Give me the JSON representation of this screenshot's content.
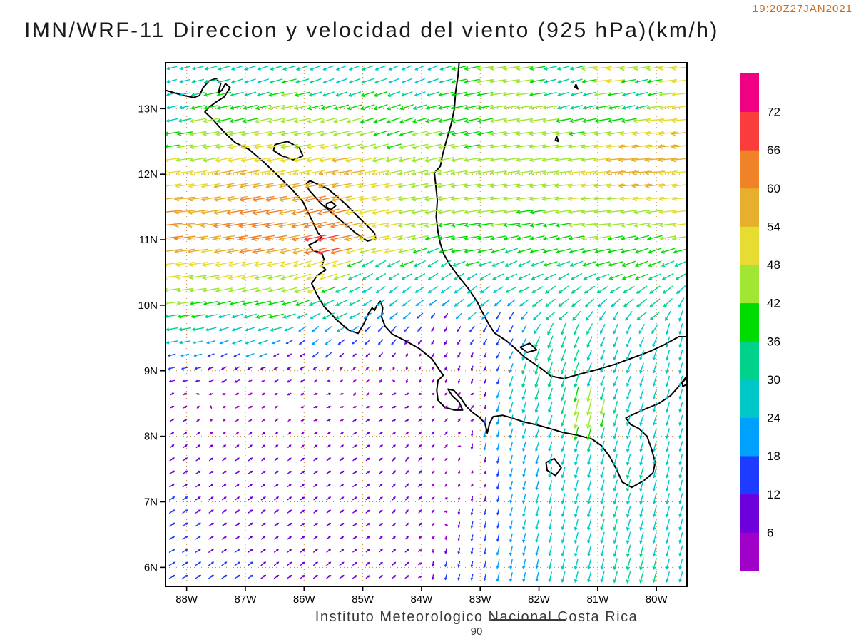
{
  "header": {
    "title": "IMN/WRF-11 Direccion y velocidad del viento (925 hPa)(km/h)",
    "timestamp": "19:20Z27JAN2021"
  },
  "footer": {
    "text": "Instituto Meteorologico Nacional Costa Rica",
    "frame_number": "90"
  },
  "colors": {
    "timestamp": "#c96a1b",
    "grid": "#c8883c",
    "coast": "#000000",
    "frame": "#000000",
    "tick_text": "#000000",
    "title_text": "#1a1a1a",
    "footer_text": "#3a3a3a"
  },
  "chart_data": {
    "type": "vector_field_map",
    "model": "IMN/WRF-11",
    "variable": "Direccion y velocidad del viento",
    "level": "925 hPa",
    "units": "km/h",
    "valid_time": "19:20Z27JAN2021",
    "legend_position": "right",
    "grid_style": "dotted",
    "x_tick_labels": [
      "88W",
      "87W",
      "86W",
      "85W",
      "84W",
      "83W",
      "82W",
      "81W",
      "80W"
    ],
    "y_tick_labels": [
      "13N",
      "12N",
      "11N",
      "10N",
      "9N",
      "8N",
      "7N",
      "6N"
    ],
    "lon_west_range": [
      88.36,
      79.48
    ],
    "lat_range": [
      5.71,
      13.7
    ],
    "colorbar": {
      "levels": [
        6,
        12,
        18,
        24,
        30,
        36,
        42,
        48,
        54,
        60,
        66,
        72
      ],
      "colors": [
        "#a000c8",
        "#6e00dc",
        "#1e3cff",
        "#00a0ff",
        "#00c8c8",
        "#00d28c",
        "#00dc00",
        "#a0e632",
        "#e6dc32",
        "#e6af2d",
        "#f08228",
        "#fa3c3c",
        "#f00082"
      ]
    },
    "wind_samples": [
      [
        88.3,
        13.6,
        -24,
        -6
      ],
      [
        86.9,
        13.5,
        -28,
        -9
      ],
      [
        85.5,
        13.6,
        -27,
        -10
      ],
      [
        84.2,
        13.6,
        -24,
        -10
      ],
      [
        82.5,
        13.62,
        -44,
        -6
      ],
      [
        80.8,
        13.62,
        -50,
        -5
      ],
      [
        79.6,
        13.6,
        -50,
        -5
      ],
      [
        81.5,
        13.3,
        -29,
        -8
      ],
      [
        80.3,
        13.15,
        -32,
        -8
      ],
      [
        88.3,
        13.0,
        -27,
        -6
      ],
      [
        87.4,
        13.0,
        -37,
        -8
      ],
      [
        86.3,
        12.9,
        -44,
        -9
      ],
      [
        84.6,
        12.9,
        -36,
        -12
      ],
      [
        83.3,
        12.9,
        -40,
        -8
      ],
      [
        82.0,
        12.85,
        -44,
        -6
      ],
      [
        80.0,
        12.8,
        -52,
        -5
      ],
      [
        88.3,
        12.5,
        -40,
        -6
      ],
      [
        87.6,
        12.6,
        -45,
        -8
      ],
      [
        85.2,
        12.55,
        -42,
        -11
      ],
      [
        79.6,
        12.5,
        -55,
        -5
      ],
      [
        88.3,
        12.15,
        -48,
        -6
      ],
      [
        86.8,
        12.2,
        -52,
        -9
      ],
      [
        85.3,
        12.1,
        -55,
        -8
      ],
      [
        83.9,
        12.1,
        -45,
        -10
      ],
      [
        82.4,
        12.1,
        -42,
        -6
      ],
      [
        80.3,
        12.1,
        -57,
        -5
      ],
      [
        87.0,
        11.8,
        -57,
        -10
      ],
      [
        85.0,
        11.75,
        -50,
        -10
      ],
      [
        83.0,
        11.8,
        -43,
        -6
      ],
      [
        81.3,
        11.8,
        -48,
        -5
      ],
      [
        88.3,
        11.45,
        -60,
        -6
      ],
      [
        86.8,
        11.5,
        -62,
        -10
      ],
      [
        85.6,
        11.35,
        -60,
        -13
      ],
      [
        84.1,
        11.4,
        -47,
        -8
      ],
      [
        82.6,
        11.45,
        -42,
        -5
      ],
      [
        80.9,
        11.4,
        -46,
        -4
      ],
      [
        79.6,
        11.5,
        -48,
        -5
      ],
      [
        88.3,
        11.0,
        -61,
        -7
      ],
      [
        86.9,
        11.05,
        -64,
        -10
      ],
      [
        85.6,
        11.02,
        -66,
        -14
      ],
      [
        84.6,
        10.95,
        -50,
        -9
      ],
      [
        83.3,
        10.9,
        -41,
        -6
      ],
      [
        82.0,
        10.85,
        -38,
        -8
      ],
      [
        80.6,
        10.9,
        -40,
        -8
      ],
      [
        88.3,
        10.65,
        -52,
        -7
      ],
      [
        87.0,
        10.55,
        -48,
        -10
      ],
      [
        85.8,
        10.45,
        -48,
        -15
      ],
      [
        84.7,
        10.5,
        -26,
        -16
      ],
      [
        83.6,
        10.5,
        -25,
        -17
      ],
      [
        82.2,
        10.55,
        -30,
        -14
      ],
      [
        80.3,
        10.6,
        -34,
        -13
      ],
      [
        88.2,
        10.1,
        -43,
        -6
      ],
      [
        86.7,
        10.05,
        -41,
        -9
      ],
      [
        85.5,
        9.95,
        -30,
        -14
      ],
      [
        84.5,
        10.05,
        -20,
        -16
      ],
      [
        83.2,
        10.15,
        -23,
        -18
      ],
      [
        81.7,
        10.05,
        -25,
        -19
      ],
      [
        80.2,
        10.0,
        -26,
        -20
      ],
      [
        88.3,
        9.6,
        -30,
        -5
      ],
      [
        87.0,
        9.55,
        -24,
        -8
      ],
      [
        85.7,
        9.5,
        -14,
        -12
      ],
      [
        84.6,
        9.55,
        -10,
        -11
      ],
      [
        83.6,
        9.6,
        -5,
        -9
      ],
      [
        82.6,
        9.55,
        -7,
        -14
      ],
      [
        81.6,
        9.45,
        -12,
        -32
      ],
      [
        80.5,
        9.55,
        -9,
        -24
      ],
      [
        79.6,
        9.55,
        -7,
        -27
      ],
      [
        88.3,
        9.05,
        -15,
        -4
      ],
      [
        87.2,
        9.0,
        -10,
        -5
      ],
      [
        86.2,
        9.0,
        -7,
        -4
      ],
      [
        85.1,
        9.0,
        -4,
        -3
      ],
      [
        84.2,
        9.0,
        -1,
        -2
      ],
      [
        83.1,
        9.0,
        -3,
        -8
      ],
      [
        82.0,
        8.95,
        -10,
        -33
      ],
      [
        80.8,
        9.0,
        -9,
        -24
      ],
      [
        79.7,
        9.0,
        -7,
        -26
      ],
      [
        88.3,
        8.55,
        6,
        3
      ],
      [
        87.0,
        8.5,
        5,
        3
      ],
      [
        85.6,
        8.5,
        6,
        2
      ],
      [
        84.4,
        8.5,
        6,
        3
      ],
      [
        83.3,
        8.45,
        3,
        4
      ],
      [
        82.35,
        8.35,
        -8,
        -28
      ],
      [
        81.15,
        8.35,
        -10,
        -45
      ],
      [
        80.2,
        8.45,
        -8,
        -25
      ],
      [
        79.6,
        8.5,
        -7,
        -25
      ],
      [
        88.3,
        8.0,
        7,
        5
      ],
      [
        86.6,
        8.0,
        5,
        4
      ],
      [
        85.0,
        8.0,
        6,
        4
      ],
      [
        83.7,
        8.05,
        4,
        5
      ],
      [
        82.8,
        7.95,
        -4,
        -18
      ],
      [
        81.8,
        8.0,
        -8,
        -24
      ],
      [
        80.8,
        8.0,
        -8,
        -28
      ],
      [
        79.8,
        8.0,
        -7,
        -25
      ],
      [
        88.3,
        7.45,
        9,
        6
      ],
      [
        87.0,
        7.4,
        7,
        5
      ],
      [
        85.5,
        7.4,
        7,
        5
      ],
      [
        84.2,
        7.4,
        5,
        6
      ],
      [
        83.2,
        7.4,
        1,
        3
      ],
      [
        82.4,
        7.4,
        -5,
        -20
      ],
      [
        81.4,
        7.4,
        -7,
        -27
      ],
      [
        80.4,
        7.4,
        -8,
        -29
      ],
      [
        79.6,
        7.4,
        -6,
        -27
      ],
      [
        88.3,
        6.8,
        11,
        7
      ],
      [
        86.8,
        6.8,
        8,
        6
      ],
      [
        85.3,
        6.8,
        7,
        5
      ],
      [
        84.0,
        6.8,
        4,
        5
      ],
      [
        83.0,
        6.8,
        -3,
        -13
      ],
      [
        82.0,
        6.8,
        -6,
        -24
      ],
      [
        80.9,
        6.8,
        -8,
        -29
      ],
      [
        79.7,
        6.8,
        -7,
        -27
      ],
      [
        88.3,
        6.0,
        12,
        7
      ],
      [
        87.1,
        6.0,
        10,
        7
      ],
      [
        85.7,
        6.0,
        8,
        6
      ],
      [
        84.4,
        6.05,
        6,
        5
      ],
      [
        83.4,
        6.0,
        -3,
        -12
      ],
      [
        82.4,
        6.0,
        -5,
        -22
      ],
      [
        81.3,
        6.0,
        -7,
        -27
      ],
      [
        80.3,
        6.0,
        -8,
        -30
      ],
      [
        79.6,
        6.0,
        -7,
        -26
      ]
    ],
    "map_outline": [
      [
        [
          88.36,
          13.28
        ],
        [
          88.05,
          13.2
        ],
        [
          87.88,
          13.17
        ],
        [
          87.78,
          13.2
        ],
        [
          87.72,
          13.32
        ],
        [
          87.62,
          13.42
        ],
        [
          87.5,
          13.46
        ],
        [
          87.42,
          13.38
        ],
        [
          87.46,
          13.24
        ],
        [
          87.4,
          13.28
        ],
        [
          87.34,
          13.38
        ],
        [
          87.26,
          13.32
        ],
        [
          87.36,
          13.18
        ],
        [
          87.5,
          13.1
        ],
        [
          87.62,
          13.02
        ],
        [
          87.69,
          12.95
        ],
        [
          87.56,
          12.84
        ],
        [
          87.35,
          12.63
        ],
        [
          87.17,
          12.48
        ],
        [
          86.94,
          12.38
        ],
        [
          86.68,
          12.18
        ],
        [
          86.45,
          11.98
        ],
        [
          86.22,
          11.78
        ],
        [
          86.02,
          11.58
        ],
        [
          85.88,
          11.32
        ],
        [
          85.76,
          11.1
        ],
        [
          85.7,
          11.04
        ],
        [
          85.8,
          10.97
        ],
        [
          85.92,
          10.92
        ],
        [
          85.84,
          10.83
        ],
        [
          85.7,
          10.8
        ],
        [
          85.66,
          10.7
        ],
        [
          85.7,
          10.6
        ],
        [
          85.63,
          10.54
        ],
        [
          85.78,
          10.45
        ],
        [
          85.87,
          10.33
        ],
        [
          85.78,
          10.16
        ],
        [
          85.66,
          9.98
        ],
        [
          85.45,
          9.78
        ],
        [
          85.24,
          9.62
        ],
        [
          85.08,
          9.57
        ],
        [
          84.98,
          9.72
        ],
        [
          84.9,
          9.88
        ],
        [
          84.84,
          9.96
        ],
        [
          84.8,
          9.92
        ],
        [
          84.76,
          10.0
        ],
        [
          84.7,
          10.06
        ],
        [
          84.66,
          9.96
        ],
        [
          84.68,
          9.82
        ],
        [
          84.62,
          9.68
        ],
        [
          84.5,
          9.56
        ],
        [
          84.28,
          9.46
        ],
        [
          84.04,
          9.34
        ],
        [
          83.82,
          9.18
        ],
        [
          83.7,
          9.02
        ],
        [
          83.63,
          8.93
        ],
        [
          83.72,
          8.85
        ],
        [
          83.74,
          8.7
        ],
        [
          83.72,
          8.55
        ],
        [
          83.6,
          8.44
        ],
        [
          83.44,
          8.4
        ],
        [
          83.3,
          8.4
        ],
        [
          83.36,
          8.52
        ],
        [
          83.48,
          8.62
        ],
        [
          83.55,
          8.72
        ],
        [
          83.45,
          8.7
        ],
        [
          83.33,
          8.58
        ],
        [
          83.24,
          8.46
        ],
        [
          83.14,
          8.37
        ],
        [
          83.0,
          8.28
        ],
        [
          82.92,
          8.2
        ],
        [
          82.88,
          8.05
        ],
        [
          82.84,
          8.2
        ],
        [
          82.78,
          8.3
        ],
        [
          82.62,
          8.32
        ],
        [
          82.46,
          8.28
        ],
        [
          82.26,
          8.22
        ],
        [
          82.06,
          8.18
        ],
        [
          81.82,
          8.12
        ],
        [
          81.6,
          8.06
        ],
        [
          81.36,
          8.02
        ],
        [
          81.1,
          7.96
        ],
        [
          80.94,
          7.86
        ],
        [
          80.8,
          7.7
        ],
        [
          80.68,
          7.5
        ],
        [
          80.58,
          7.3
        ],
        [
          80.42,
          7.22
        ],
        [
          80.22,
          7.32
        ],
        [
          80.06,
          7.44
        ],
        [
          80.02,
          7.6
        ],
        [
          80.08,
          7.8
        ],
        [
          80.16,
          8.0
        ],
        [
          80.3,
          8.12
        ],
        [
          80.44,
          8.18
        ],
        [
          80.52,
          8.28
        ],
        [
          80.38,
          8.34
        ],
        [
          80.18,
          8.42
        ],
        [
          79.96,
          8.5
        ],
        [
          79.76,
          8.62
        ],
        [
          79.6,
          8.78
        ],
        [
          79.5,
          8.9
        ]
      ],
      [
        [
          79.48,
          9.52
        ],
        [
          79.62,
          9.52
        ],
        [
          79.86,
          9.4
        ],
        [
          80.1,
          9.3
        ],
        [
          80.4,
          9.2
        ],
        [
          80.7,
          9.1
        ],
        [
          81.0,
          9.02
        ],
        [
          81.3,
          8.95
        ],
        [
          81.58,
          8.88
        ],
        [
          81.8,
          8.92
        ],
        [
          81.94,
          9.02
        ],
        [
          82.1,
          9.12
        ],
        [
          82.26,
          9.22
        ],
        [
          82.4,
          9.34
        ],
        [
          82.56,
          9.46
        ],
        [
          82.76,
          9.58
        ],
        [
          82.86,
          9.72
        ],
        [
          82.98,
          9.92
        ],
        [
          83.05,
          10.05
        ],
        [
          83.2,
          10.25
        ],
        [
          83.38,
          10.45
        ],
        [
          83.52,
          10.62
        ],
        [
          83.62,
          10.78
        ],
        [
          83.68,
          10.94
        ],
        [
          83.72,
          11.12
        ],
        [
          83.75,
          11.35
        ],
        [
          83.73,
          11.6
        ],
        [
          83.76,
          11.85
        ],
        [
          83.78,
          12.02
        ],
        [
          83.68,
          12.12
        ],
        [
          83.64,
          12.3
        ],
        [
          83.58,
          12.5
        ],
        [
          83.5,
          12.75
        ],
        [
          83.44,
          13.0
        ],
        [
          83.42,
          13.25
        ],
        [
          83.38,
          13.5
        ],
        [
          83.36,
          13.7
        ]
      ],
      [
        [
          85.9,
          11.9
        ],
        [
          85.6,
          11.78
        ],
        [
          85.3,
          11.55
        ],
        [
          85.0,
          11.28
        ],
        [
          84.8,
          11.1
        ],
        [
          84.78,
          11.02
        ],
        [
          84.92,
          10.98
        ],
        [
          85.12,
          11.1
        ],
        [
          85.42,
          11.33
        ],
        [
          85.72,
          11.56
        ],
        [
          85.92,
          11.76
        ],
        [
          85.96,
          11.86
        ],
        [
          85.9,
          11.9
        ]
      ],
      [
        [
          85.62,
          11.55
        ],
        [
          85.53,
          11.58
        ],
        [
          85.46,
          11.52
        ],
        [
          85.54,
          11.46
        ],
        [
          85.62,
          11.5
        ],
        [
          85.62,
          11.55
        ]
      ],
      [
        [
          86.5,
          12.45
        ],
        [
          86.28,
          12.5
        ],
        [
          86.08,
          12.4
        ],
        [
          86.02,
          12.28
        ],
        [
          86.18,
          12.22
        ],
        [
          86.38,
          12.28
        ],
        [
          86.52,
          12.36
        ],
        [
          86.5,
          12.45
        ]
      ],
      [
        [
          81.88,
          7.6
        ],
        [
          81.74,
          7.66
        ],
        [
          81.62,
          7.52
        ],
        [
          81.72,
          7.4
        ],
        [
          81.86,
          7.48
        ],
        [
          81.88,
          7.6
        ]
      ],
      [
        [
          82.32,
          9.36
        ],
        [
          82.16,
          9.42
        ],
        [
          82.04,
          9.32
        ],
        [
          82.2,
          9.28
        ],
        [
          82.32,
          9.36
        ]
      ],
      [
        [
          79.56,
          8.82
        ],
        [
          79.5,
          8.88
        ],
        [
          79.47,
          8.8
        ],
        [
          79.55,
          8.76
        ],
        [
          79.56,
          8.82
        ]
      ],
      [
        [
          81.7,
          12.58
        ],
        [
          81.67,
          12.5
        ],
        [
          81.72,
          12.52
        ],
        [
          81.7,
          12.58
        ]
      ],
      [
        [
          81.37,
          13.37
        ],
        [
          81.34,
          13.3
        ],
        [
          81.39,
          13.33
        ],
        [
          81.37,
          13.37
        ]
      ]
    ]
  }
}
